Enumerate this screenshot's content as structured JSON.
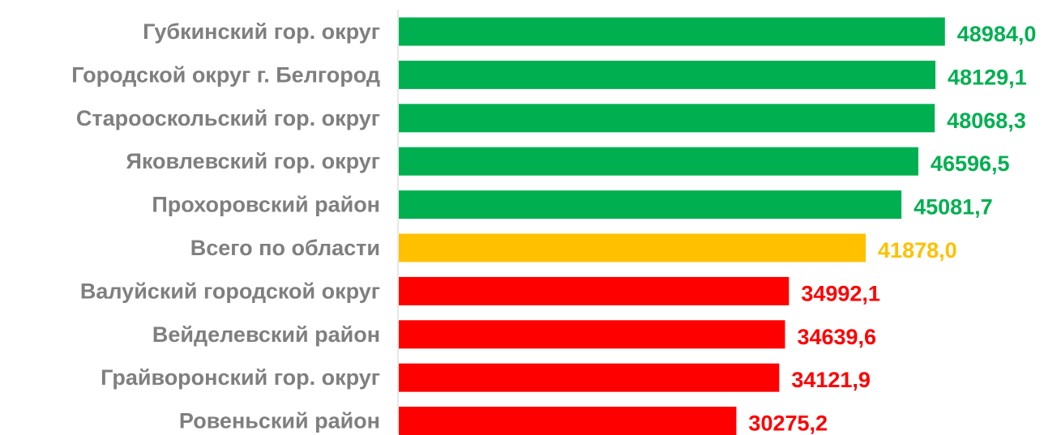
{
  "colors": {
    "above": "#00b050",
    "total": "#ffc000",
    "below": "#ff0000",
    "category_text": "#7f7f7f",
    "axis": "#d0d0d0"
  },
  "chart_data": {
    "type": "bar",
    "orientation": "horizontal",
    "title": "",
    "xlabel": "",
    "ylabel": "",
    "xlim": [
      0,
      52000
    ],
    "grid": false,
    "legend": "none",
    "categories": [
      "Губкинский гор. округ",
      "Городской округ г. Белгород",
      "Старооскольский гор. округ",
      "Яковлевский гор. округ",
      "Прохоровский район",
      "Всего по области",
      "Валуйский городской округ",
      "Вейделевский район",
      "Грайворонский гор. округ",
      "Ровеньский район"
    ],
    "values": [
      48984.0,
      48129.1,
      48068.3,
      46596.5,
      45081.7,
      41878.0,
      34992.1,
      34639.6,
      34121.9,
      30275.2
    ],
    "value_labels": [
      "48984,0",
      "48129,1",
      "48068,3",
      "46596,5",
      "45081,7",
      "41878,0",
      "34992,1",
      "34639,6",
      "34121,9",
      "30275,2"
    ],
    "bar_colors": [
      "above",
      "above",
      "above",
      "above",
      "above",
      "total",
      "below",
      "below",
      "below",
      "below"
    ]
  }
}
